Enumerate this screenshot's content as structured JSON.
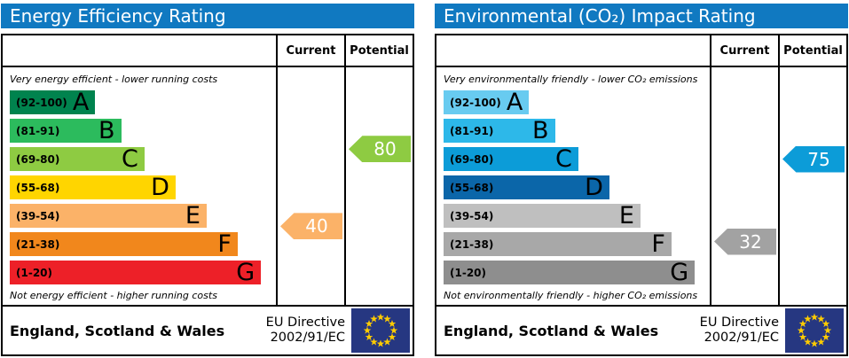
{
  "colors": {
    "header_bg": "#1079c1",
    "header_text": "#ffffff",
    "table_border": "#000000",
    "flag_blue": "#263781",
    "flag_star_yellow": "#ffcc00"
  },
  "panels": [
    {
      "title": "Energy Efficiency Rating",
      "columns": {
        "current": "Current",
        "potential": "Potential"
      },
      "top_note": "Very energy efficient - lower running costs",
      "bottom_note": "Not energy efficient - higher running costs",
      "bands": [
        {
          "letter": "A",
          "range": "(92-100)",
          "min": 92,
          "max": 100,
          "color": "#00834e",
          "width_pct": 33
        },
        {
          "letter": "B",
          "range": "(81-91)",
          "min": 81,
          "max": 91,
          "color": "#2cbb5d",
          "width_pct": 43
        },
        {
          "letter": "C",
          "range": "(69-80)",
          "min": 69,
          "max": 80,
          "color": "#8ecb42",
          "width_pct": 52
        },
        {
          "letter": "D",
          "range": "(55-68)",
          "min": 55,
          "max": 68,
          "color": "#ffd500",
          "width_pct": 64
        },
        {
          "letter": "E",
          "range": "(39-54)",
          "min": 39,
          "max": 54,
          "color": "#fbb268",
          "width_pct": 76
        },
        {
          "letter": "F",
          "range": "(21-38)",
          "min": 21,
          "max": 38,
          "color": "#f1871c",
          "width_pct": 88
        },
        {
          "letter": "G",
          "range": "(1-20)",
          "min": 1,
          "max": 20,
          "color": "#ed2028",
          "width_pct": 97
        }
      ],
      "current": {
        "value": 40,
        "band": "E",
        "color": "#fbb268"
      },
      "potential": {
        "value": 80,
        "band": "C",
        "color": "#8ecb42"
      },
      "footer": {
        "region": "England, Scotland & Wales",
        "directive_line1": "EU Directive",
        "directive_line2": "2002/91/EC"
      }
    },
    {
      "title": "Environmental (CO₂) Impact Rating",
      "columns": {
        "current": "Current",
        "potential": "Potential"
      },
      "top_note": "Very environmentally friendly - lower CO₂ emissions",
      "bottom_note": "Not environmentally friendly - higher CO₂ emissions",
      "bands": [
        {
          "letter": "A",
          "range": "(92-100)",
          "min": 92,
          "max": 100,
          "color": "#68cbf0",
          "width_pct": 33
        },
        {
          "letter": "B",
          "range": "(81-91)",
          "min": 81,
          "max": 91,
          "color": "#2db8e9",
          "width_pct": 43
        },
        {
          "letter": "C",
          "range": "(69-80)",
          "min": 69,
          "max": 80,
          "color": "#0c9cd8",
          "width_pct": 52
        },
        {
          "letter": "D",
          "range": "(55-68)",
          "min": 55,
          "max": 68,
          "color": "#0b66a9",
          "width_pct": 64
        },
        {
          "letter": "E",
          "range": "(39-54)",
          "min": 39,
          "max": 54,
          "color": "#bfbfbf",
          "width_pct": 76
        },
        {
          "letter": "F",
          "range": "(21-38)",
          "min": 21,
          "max": 38,
          "color": "#a8a8a8",
          "width_pct": 88
        },
        {
          "letter": "G",
          "range": "(1-20)",
          "min": 1,
          "max": 20,
          "color": "#8e8e8e",
          "width_pct": 97
        }
      ],
      "current": {
        "value": 32,
        "band": "F",
        "color": "#a2a2a2"
      },
      "potential": {
        "value": 75,
        "band": "C",
        "color": "#0c9cd8"
      },
      "footer": {
        "region": "England, Scotland & Wales",
        "directive_line1": "EU Directive",
        "directive_line2": "2002/91/EC"
      }
    }
  ],
  "chart_data": [
    {
      "type": "bar",
      "title": "Energy Efficiency Rating",
      "subtitle_top": "Very energy efficient - lower running costs",
      "subtitle_bottom": "Not energy efficient - higher running costs",
      "categories": [
        "A",
        "B",
        "C",
        "D",
        "E",
        "F",
        "G"
      ],
      "band_ranges": [
        "92-100",
        "81-91",
        "69-80",
        "55-68",
        "39-54",
        "21-38",
        "1-20"
      ],
      "bar_length_pct": [
        33,
        43,
        52,
        64,
        76,
        88,
        97
      ],
      "bar_colors": [
        "#00834e",
        "#2cbb5d",
        "#8ecb42",
        "#ffd500",
        "#fbb268",
        "#f1871c",
        "#ed2028"
      ],
      "markers": {
        "current": 40,
        "potential": 80
      },
      "marker_bands": {
        "current": "E",
        "potential": "C"
      },
      "column_headers": [
        "Current",
        "Potential"
      ],
      "footer_region": "England, Scotland & Wales",
      "footer_directive": "EU Directive 2002/91/EC",
      "legend_position": "right-columns",
      "grid": false
    },
    {
      "type": "bar",
      "title": "Environmental (CO₂) Impact Rating",
      "subtitle_top": "Very environmentally friendly - lower CO₂ emissions",
      "subtitle_bottom": "Not environmentally friendly - higher CO₂ emissions",
      "categories": [
        "A",
        "B",
        "C",
        "D",
        "E",
        "F",
        "G"
      ],
      "band_ranges": [
        "92-100",
        "81-91",
        "69-80",
        "55-68",
        "39-54",
        "21-38",
        "1-20"
      ],
      "bar_length_pct": [
        33,
        43,
        52,
        64,
        76,
        88,
        97
      ],
      "bar_colors": [
        "#68cbf0",
        "#2db8e9",
        "#0c9cd8",
        "#0b66a9",
        "#bfbfbf",
        "#a8a8a8",
        "#8e8e8e"
      ],
      "markers": {
        "current": 32,
        "potential": 75
      },
      "marker_bands": {
        "current": "F",
        "potential": "C"
      },
      "column_headers": [
        "Current",
        "Potential"
      ],
      "footer_region": "England, Scotland & Wales",
      "footer_directive": "EU Directive 2002/91/EC",
      "legend_position": "right-columns",
      "grid": false
    }
  ]
}
